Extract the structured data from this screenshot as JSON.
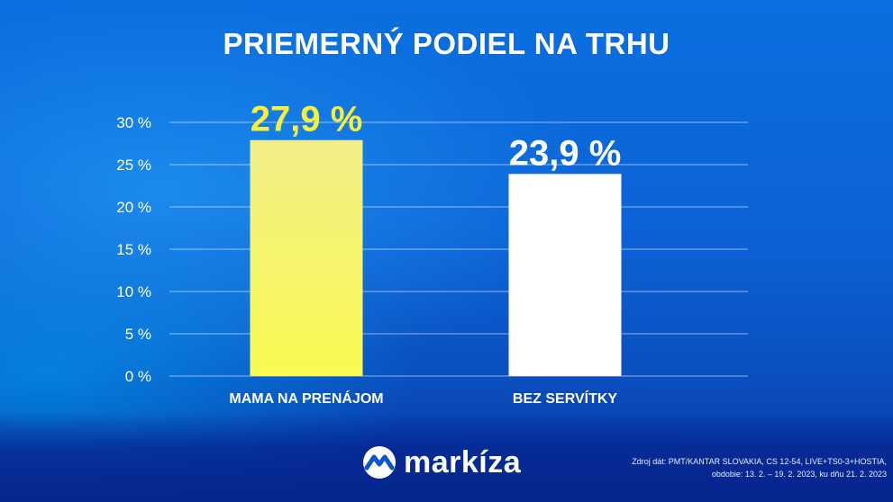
{
  "chart_data": {
    "type": "bar",
    "title": "PRIEMERNÝ PODIEL NA TRHU",
    "categories": [
      "MAMA NA PRENÁJOM",
      "BEZ SERVÍTKY"
    ],
    "values": [
      27.9,
      23.9
    ],
    "value_labels": [
      "27,9 %",
      "23,9 %"
    ],
    "bar_colors": [
      "#f6f26c",
      "#ffffff"
    ],
    "value_label_colors": [
      "#f7f03a",
      "#ffffff"
    ],
    "yticks": [
      0,
      5,
      10,
      15,
      20,
      25,
      30
    ],
    "ytick_labels": [
      "0 %",
      "5 %",
      "10 %",
      "15 %",
      "20 %",
      "25 %",
      "30 %"
    ],
    "ylim": [
      0,
      30
    ],
    "xlabel": "",
    "ylabel": "",
    "grid": true,
    "legend": "none"
  },
  "brand": {
    "name": "markíza"
  },
  "source": {
    "line1": "Zdroj dát: PMT/KANTAR SLOVAKIA, CS 12-54, LIVE+TS0-3+HOSTIA,",
    "line2": "obdobie: 13. 2. – 19. 2. 2023, ku dňu 21. 2. 2023"
  }
}
